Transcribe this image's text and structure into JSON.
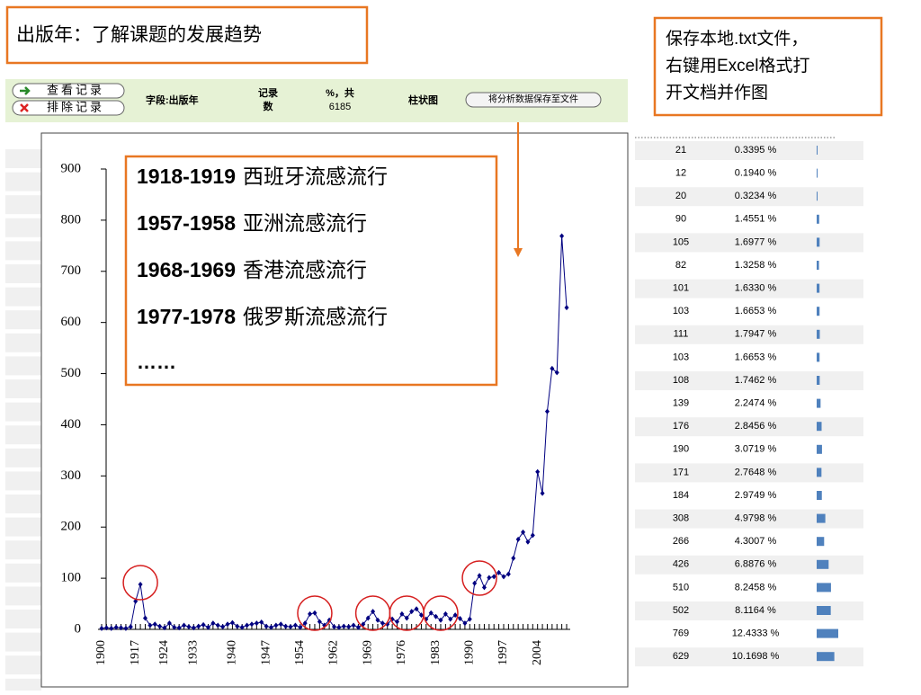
{
  "header": {
    "title": "出版年：了解课题的发展趋势"
  },
  "note": [
    "保存本地.txt文件，",
    "右键用Excel格式打",
    "开文档并作图"
  ],
  "toolbar": {
    "view_button": "查看记录",
    "exclude_button": "排除记录",
    "field": "字段:出版年",
    "count_col": [
      "记录",
      "数"
    ],
    "percent_col": [
      "%，共",
      "6185"
    ],
    "chart_col": "柱状图",
    "save_button": "将分析数据保存至文件"
  },
  "chart_data": {
    "type": "line",
    "color": "#000080",
    "categories": [
      "1900",
      null,
      null,
      null,
      null,
      null,
      null,
      "1917",
      null,
      null,
      null,
      null,
      null,
      "1924",
      null,
      null,
      null,
      null,
      null,
      "1933",
      null,
      null,
      null,
      null,
      null,
      null,
      null,
      "1940",
      null,
      null,
      null,
      null,
      null,
      null,
      "1947",
      null,
      null,
      null,
      null,
      null,
      null,
      "1954",
      null,
      null,
      null,
      null,
      null,
      null,
      "1962",
      null,
      null,
      null,
      null,
      null,
      null,
      "1969",
      null,
      null,
      null,
      null,
      null,
      null,
      "1976",
      null,
      null,
      null,
      null,
      null,
      null,
      "1983",
      null,
      null,
      null,
      null,
      null,
      null,
      "1990",
      null,
      null,
      null,
      null,
      null,
      null,
      "1997",
      null,
      null,
      null,
      null,
      null,
      null,
      "2004",
      null,
      null,
      null,
      null,
      null,
      null
    ],
    "values": [
      2,
      3,
      2,
      4,
      3,
      2,
      5,
      55,
      88,
      22,
      8,
      10,
      6,
      3,
      12,
      4,
      3,
      8,
      5,
      3,
      6,
      9,
      4,
      12,
      8,
      5,
      10,
      13,
      6,
      4,
      8,
      10,
      12,
      14,
      6,
      4,
      8,
      10,
      6,
      5,
      8,
      4,
      12,
      30,
      32,
      15,
      8,
      18,
      5,
      4,
      6,
      5,
      8,
      4,
      10,
      22,
      35,
      18,
      12,
      10,
      20,
      15,
      30,
      22,
      35,
      40,
      28,
      20,
      32,
      25,
      18,
      30,
      20,
      28,
      21,
      12,
      20,
      90,
      105,
      82,
      101,
      103,
      111,
      103,
      108,
      139,
      176,
      190,
      171,
      184,
      308,
      266,
      426,
      510,
      502,
      769,
      629
    ],
    "ylim": [
      0,
      900
    ],
    "yticks": [
      0,
      100,
      200,
      300,
      400,
      500,
      600,
      700,
      800,
      900
    ],
    "annotations": [
      {
        "years": "1918-1919",
        "event": "西班牙流感流行"
      },
      {
        "years": "1957-1958",
        "event": "亚洲流感流行"
      },
      {
        "years": "1968-1969",
        "event": "香港流感流行"
      },
      {
        "years": "1977-1978",
        "event": "俄罗斯流感流行"
      }
    ],
    "annotation_more": "……"
  },
  "table": {
    "bar_color": "#4f81bd",
    "rows": [
      [
        21,
        "0.3395 %"
      ],
      [
        12,
        "0.1940 %"
      ],
      [
        20,
        "0.3234 %"
      ],
      [
        90,
        "1.4551 %"
      ],
      [
        105,
        "1.6977 %"
      ],
      [
        82,
        "1.3258 %"
      ],
      [
        101,
        "1.6330 %"
      ],
      [
        103,
        "1.6653 %"
      ],
      [
        111,
        "1.7947 %"
      ],
      [
        103,
        "1.6653 %"
      ],
      [
        108,
        "1.7462 %"
      ],
      [
        139,
        "2.2474 %"
      ],
      [
        176,
        "2.8456 %"
      ],
      [
        190,
        "3.0719 %"
      ],
      [
        171,
        "2.7648 %"
      ],
      [
        184,
        "2.9749 %"
      ],
      [
        308,
        "4.9798 %"
      ],
      [
        266,
        "4.3007 %"
      ],
      [
        426,
        "6.8876 %"
      ],
      [
        510,
        "8.2458 %"
      ],
      [
        502,
        "8.1164 %"
      ],
      [
        769,
        "12.4333 %"
      ],
      [
        629,
        "10.1698 %"
      ]
    ]
  }
}
